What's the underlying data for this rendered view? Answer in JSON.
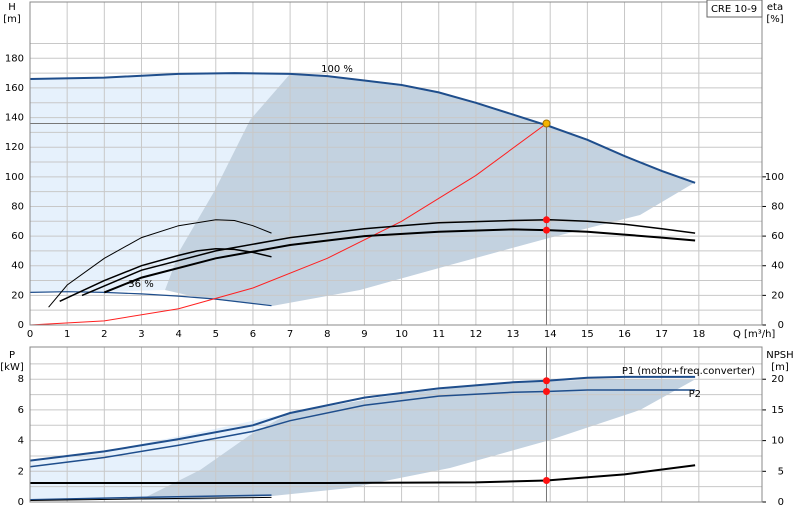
{
  "chart_data": [
    {
      "type": "line",
      "product": "CRE 10-9",
      "ylabel": [
        "H",
        "[m]"
      ],
      "y2label": [
        "eta",
        "[%]"
      ],
      "xlabel": "Q [m³/h]",
      "xlim": [
        0,
        19.7
      ],
      "xticks": [
        0,
        1,
        2,
        3,
        4,
        5,
        6,
        7,
        8,
        9,
        10,
        11,
        12,
        13,
        14,
        15,
        16,
        17,
        18
      ],
      "ylim": [
        0,
        218
      ],
      "yticks": [
        0,
        20,
        40,
        60,
        80,
        100,
        120,
        140,
        160,
        180
      ],
      "y2lim": [
        0,
        218
      ],
      "y2ticks": [
        0,
        20,
        40,
        60,
        80,
        100
      ],
      "grid": true,
      "series": [
        {
          "name": "100 %",
          "color": "#1f4e8c",
          "width": 2,
          "x": [
            0,
            2,
            4,
            5.5,
            7,
            8,
            9,
            10,
            11,
            12,
            13,
            14,
            15,
            16,
            17,
            17.9
          ],
          "values": [
            166,
            167,
            169.5,
            170,
            169.5,
            168,
            165,
            162,
            157,
            150,
            142,
            134,
            125,
            114,
            104,
            96
          ]
        },
        {
          "name": "36 %",
          "color": "#1f4e8c",
          "width": 1.2,
          "x": [
            0,
            1,
            2,
            3,
            4,
            5,
            6,
            6.5
          ],
          "values": [
            22,
            22.5,
            22,
            21,
            19.5,
            17.5,
            14.5,
            13
          ]
        },
        {
          "color": "#ff2020",
          "width": 1,
          "x": [
            0,
            2,
            4,
            6,
            8,
            10,
            12,
            13.9
          ],
          "values": [
            0,
            2.8,
            11,
            25,
            45,
            70,
            101,
            136
          ]
        },
        {
          "color": "#000000",
          "width": 1.5,
          "axis": "y2",
          "x": [
            1.4,
            3,
            5,
            7,
            9,
            11,
            13,
            14,
            15,
            16,
            17,
            17.9
          ],
          "values": [
            20,
            37,
            50,
            59,
            65,
            69,
            70.5,
            71,
            70,
            68,
            65,
            62
          ]
        },
        {
          "color": "#000000",
          "width": 2,
          "axis": "y2",
          "x": [
            2,
            3,
            5,
            7,
            9,
            11,
            13,
            14,
            15,
            16,
            17,
            17.9
          ],
          "values": [
            22,
            32,
            45,
            54,
            60,
            63,
            64.5,
            64,
            63,
            61,
            59,
            57
          ]
        },
        {
          "color": "#000000",
          "width": 1,
          "axis": "y2",
          "x": [
            0.5,
            1,
            2,
            3,
            4,
            5,
            5.5,
            6,
            6.5
          ],
          "values": [
            12,
            27,
            45,
            59,
            67,
            71,
            70.5,
            67,
            62
          ]
        },
        {
          "color": "#000000",
          "width": 1.5,
          "axis": "y2",
          "x": [
            0.8,
            2,
            3,
            4,
            4.5,
            5,
            5.5,
            6,
            6.5
          ],
          "values": [
            16,
            30,
            40,
            47,
            50,
            51.5,
            51,
            49,
            46
          ]
        }
      ],
      "points": [
        {
          "x": 13.9,
          "y": 136,
          "color": "#f4b400",
          "guide": true
        },
        {
          "x": 13.9,
          "y": 71,
          "color": "#ff1010",
          "axis": "y2"
        },
        {
          "x": 13.9,
          "y": 64,
          "color": "#ff1010",
          "axis": "y2"
        }
      ]
    },
    {
      "type": "line",
      "ylabel": [
        "P",
        "[kW]"
      ],
      "y2label": [
        "NPSH",
        "[m]"
      ],
      "xlim": [
        0,
        19.7
      ],
      "ylim": [
        0,
        10.1
      ],
      "yticks": [
        0,
        2,
        4,
        6,
        8
      ],
      "y2lim": [
        0,
        25.25
      ],
      "y2ticks": [
        0,
        5,
        10,
        15,
        20
      ],
      "grid": true,
      "series": [
        {
          "name": "P1 (motor+freq.converter)",
          "color": "#1f4e8c",
          "width": 2,
          "x": [
            0,
            2,
            4,
            6,
            7,
            9,
            11,
            13,
            13.9,
            15,
            16,
            17.9
          ],
          "values": [
            2.7,
            3.3,
            4.1,
            5,
            5.8,
            6.8,
            7.4,
            7.8,
            7.9,
            8.1,
            8.15,
            8.15
          ]
        },
        {
          "name": "P2",
          "color": "#1f4e8c",
          "width": 1.5,
          "x": [
            0,
            2,
            4,
            6,
            7,
            9,
            11,
            13,
            13.9,
            15,
            17.9
          ],
          "values": [
            2.3,
            2.9,
            3.7,
            4.6,
            5.3,
            6.3,
            6.9,
            7.15,
            7.2,
            7.3,
            7.3
          ]
        },
        {
          "color": "#000000",
          "width": 2,
          "axis": "y2",
          "x": [
            0,
            4,
            8,
            12,
            13.9,
            16,
            17.9
          ],
          "values": [
            3.1,
            3.1,
            3.1,
            3.2,
            3.5,
            4.5,
            6
          ]
        },
        {
          "color": "#1f4e8c",
          "width": 1.5,
          "x": [
            0,
            3,
            6.5
          ],
          "values": [
            0.15,
            0.3,
            0.45
          ]
        },
        {
          "color": "#000000",
          "width": 1,
          "x": [
            0,
            3,
            6.5
          ],
          "values": [
            0.1,
            0.2,
            0.3
          ]
        }
      ],
      "points": [
        {
          "x": 13.9,
          "y": 7.9,
          "color": "#ff1010",
          "guide": true
        },
        {
          "x": 13.9,
          "y": 7.2,
          "color": "#ff1010"
        },
        {
          "x": 13.9,
          "y": 3.5,
          "color": "#ff1010",
          "axis": "y2"
        }
      ]
    }
  ]
}
